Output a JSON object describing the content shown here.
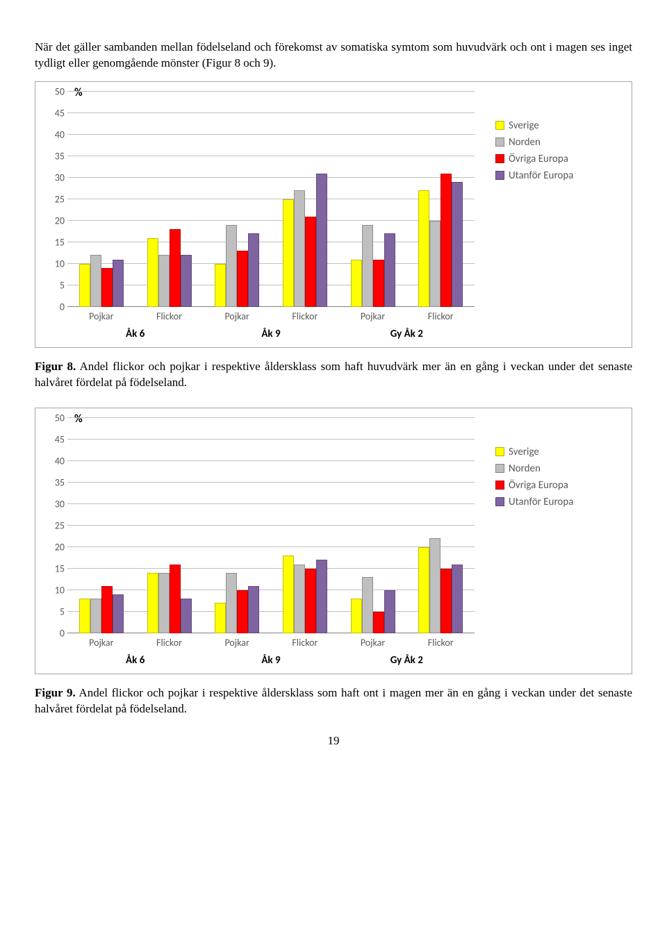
{
  "intro": "När det gäller sambanden mellan födelseland och förekomst av somatiska symtom som huvudvärk och ont i magen ses inget tydligt eller genomgående mönster (Figur 8 och 9).",
  "series_colors": {
    "sverige": "#ffff00",
    "norden": "#bfbfbf",
    "ovriga": "#ff0000",
    "utanfor": "#8064a2"
  },
  "legend_labels": {
    "sverige": "Sverige",
    "norden": "Norden",
    "ovriga": "Övriga Europa",
    "utanfor": "Utanför Europa"
  },
  "chart_common": {
    "ymin": 0,
    "ymax": 50,
    "ytick_step": 5,
    "yticks": [
      0,
      5,
      10,
      15,
      20,
      25,
      30,
      35,
      40,
      45,
      50
    ],
    "percent_label": "%",
    "group_labels": [
      "Pojkar",
      "Flickor",
      "Pojkar",
      "Flickor",
      "Pojkar",
      "Flickor"
    ],
    "xgroup_labels": [
      "Åk 6",
      "Åk 9",
      "Gy Åk 2"
    ]
  },
  "chart8": {
    "values": [
      [
        10,
        12,
        9,
        11
      ],
      [
        16,
        12,
        18,
        12
      ],
      [
        10,
        19,
        13,
        17
      ],
      [
        25,
        27,
        21,
        31
      ],
      [
        11,
        19,
        11,
        17
      ],
      [
        27,
        20,
        31,
        29
      ]
    ]
  },
  "caption8_figlabel": "Figur 8.",
  "caption8_text": " Andel flickor och pojkar i respektive åldersklass som haft huvudvärk mer än en gång i veckan under det senaste halvåret fördelat på födelseland.",
  "chart9": {
    "values": [
      [
        8,
        8,
        11,
        9
      ],
      [
        14,
        14,
        16,
        8
      ],
      [
        7,
        14,
        10,
        11
      ],
      [
        18,
        16,
        15,
        17
      ],
      [
        8,
        13,
        5,
        10
      ],
      [
        20,
        22,
        15,
        16
      ]
    ]
  },
  "caption9_figlabel": "Figur 9.",
  "caption9_text": " Andel flickor och pojkar i respektive åldersklass som haft ont i magen mer än en gång i veckan under det senaste halvåret fördelat på födelseland.",
  "pagenum": "19"
}
